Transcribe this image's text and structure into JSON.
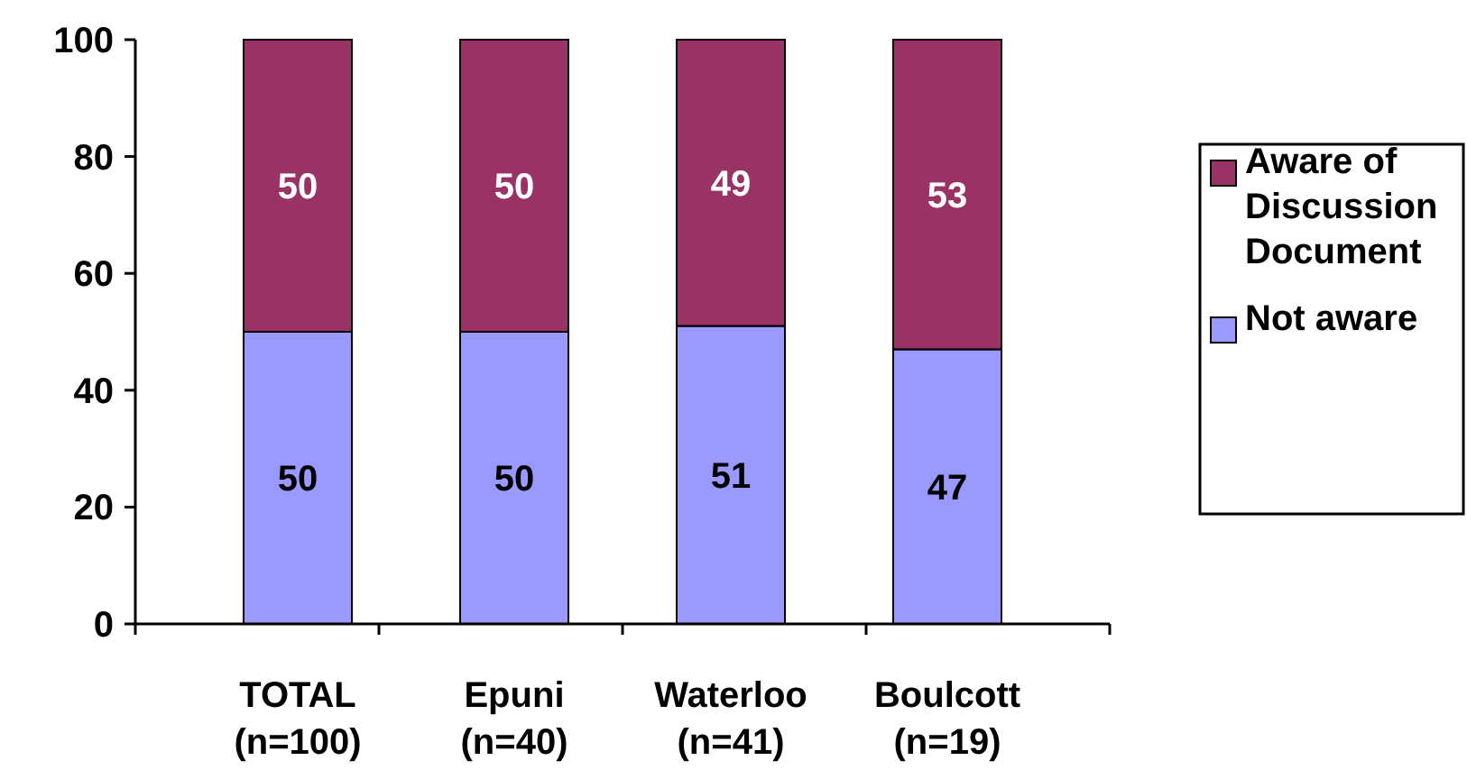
{
  "chart_data": {
    "type": "bar",
    "stacked": true,
    "categories": [
      "TOTAL\n(n=100)",
      "Epuni\n(n=40)",
      "Waterloo\n(n=41)",
      "Boulcott\n(n=19)"
    ],
    "series": [
      {
        "name": "Not aware",
        "color": "#9999ff",
        "values": [
          50,
          50,
          51,
          47
        ]
      },
      {
        "name": "Aware of Discussion Document",
        "color": "#993366",
        "values": [
          50,
          50,
          49,
          53
        ]
      }
    ],
    "ylim": [
      0,
      100
    ],
    "yticks": [
      0,
      20,
      40,
      60,
      80,
      100
    ],
    "data_labels": true,
    "legend": "right",
    "grid": false
  }
}
